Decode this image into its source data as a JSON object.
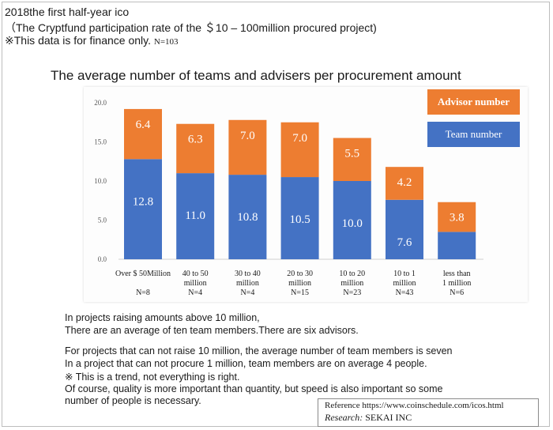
{
  "header": {
    "line1": "2018the first half-year ico",
    "line2": "（The Cryptfund participation rate of the ＄10 – 100million procured project)",
    "line3": "※This data is for finance only.",
    "line3_n": "N=103"
  },
  "chart_data": {
    "type": "bar",
    "stacked": true,
    "title": "The average number of teams and advisers per procurement amount",
    "categories": [
      {
        "line1": "Over $ 50Million",
        "line2": "",
        "n": "N=8"
      },
      {
        "line1": "40 to 50",
        "line2": "million",
        "n": "N=4"
      },
      {
        "line1": "30 to 40",
        "line2": "million",
        "n": "N=4"
      },
      {
        "line1": "20 to 30",
        "line2": "million",
        "n": "N=15"
      },
      {
        "line1": "10 to 20",
        "line2": "million",
        "n": "N=23"
      },
      {
        "line1": "10 to 1",
        "line2": "million",
        "n": "N=43"
      },
      {
        "line1": "less than",
        "line2": "1 million",
        "n": "N=6"
      }
    ],
    "series": [
      {
        "name": "Team number",
        "color": "#4472c4",
        "values": [
          12.8,
          11.0,
          10.8,
          10.5,
          10.0,
          7.6,
          3.5
        ]
      },
      {
        "name": "Advisor number",
        "color": "#ed7d31",
        "values": [
          6.4,
          6.3,
          7.0,
          7.0,
          5.5,
          4.2,
          3.8
        ]
      }
    ],
    "ylim": [
      0,
      20
    ],
    "yticks": [
      "0.0",
      "5.0",
      "10.0",
      "15.0",
      "20.0"
    ],
    "legend": "top-right",
    "grid": false
  },
  "notes": [
    "In projects raising amounts above 10 million,",
    "There are an average of ten team members.There are six advisors.",
    "For projects that can not raise 10 million, the average number of team members is seven",
    "In a project that can not procure 1 million, team members are on average 4 people.",
    "※ This is a trend, not everything is right.",
    "Of course, quality is more important than quantity, but speed is also important so some",
    " number of people is necessary."
  ],
  "reference": {
    "label": "Reference",
    "url": "https://www.coinschedule.com/icos.html",
    "research_label": "Research:",
    "research_value": "SEKAI INC"
  }
}
